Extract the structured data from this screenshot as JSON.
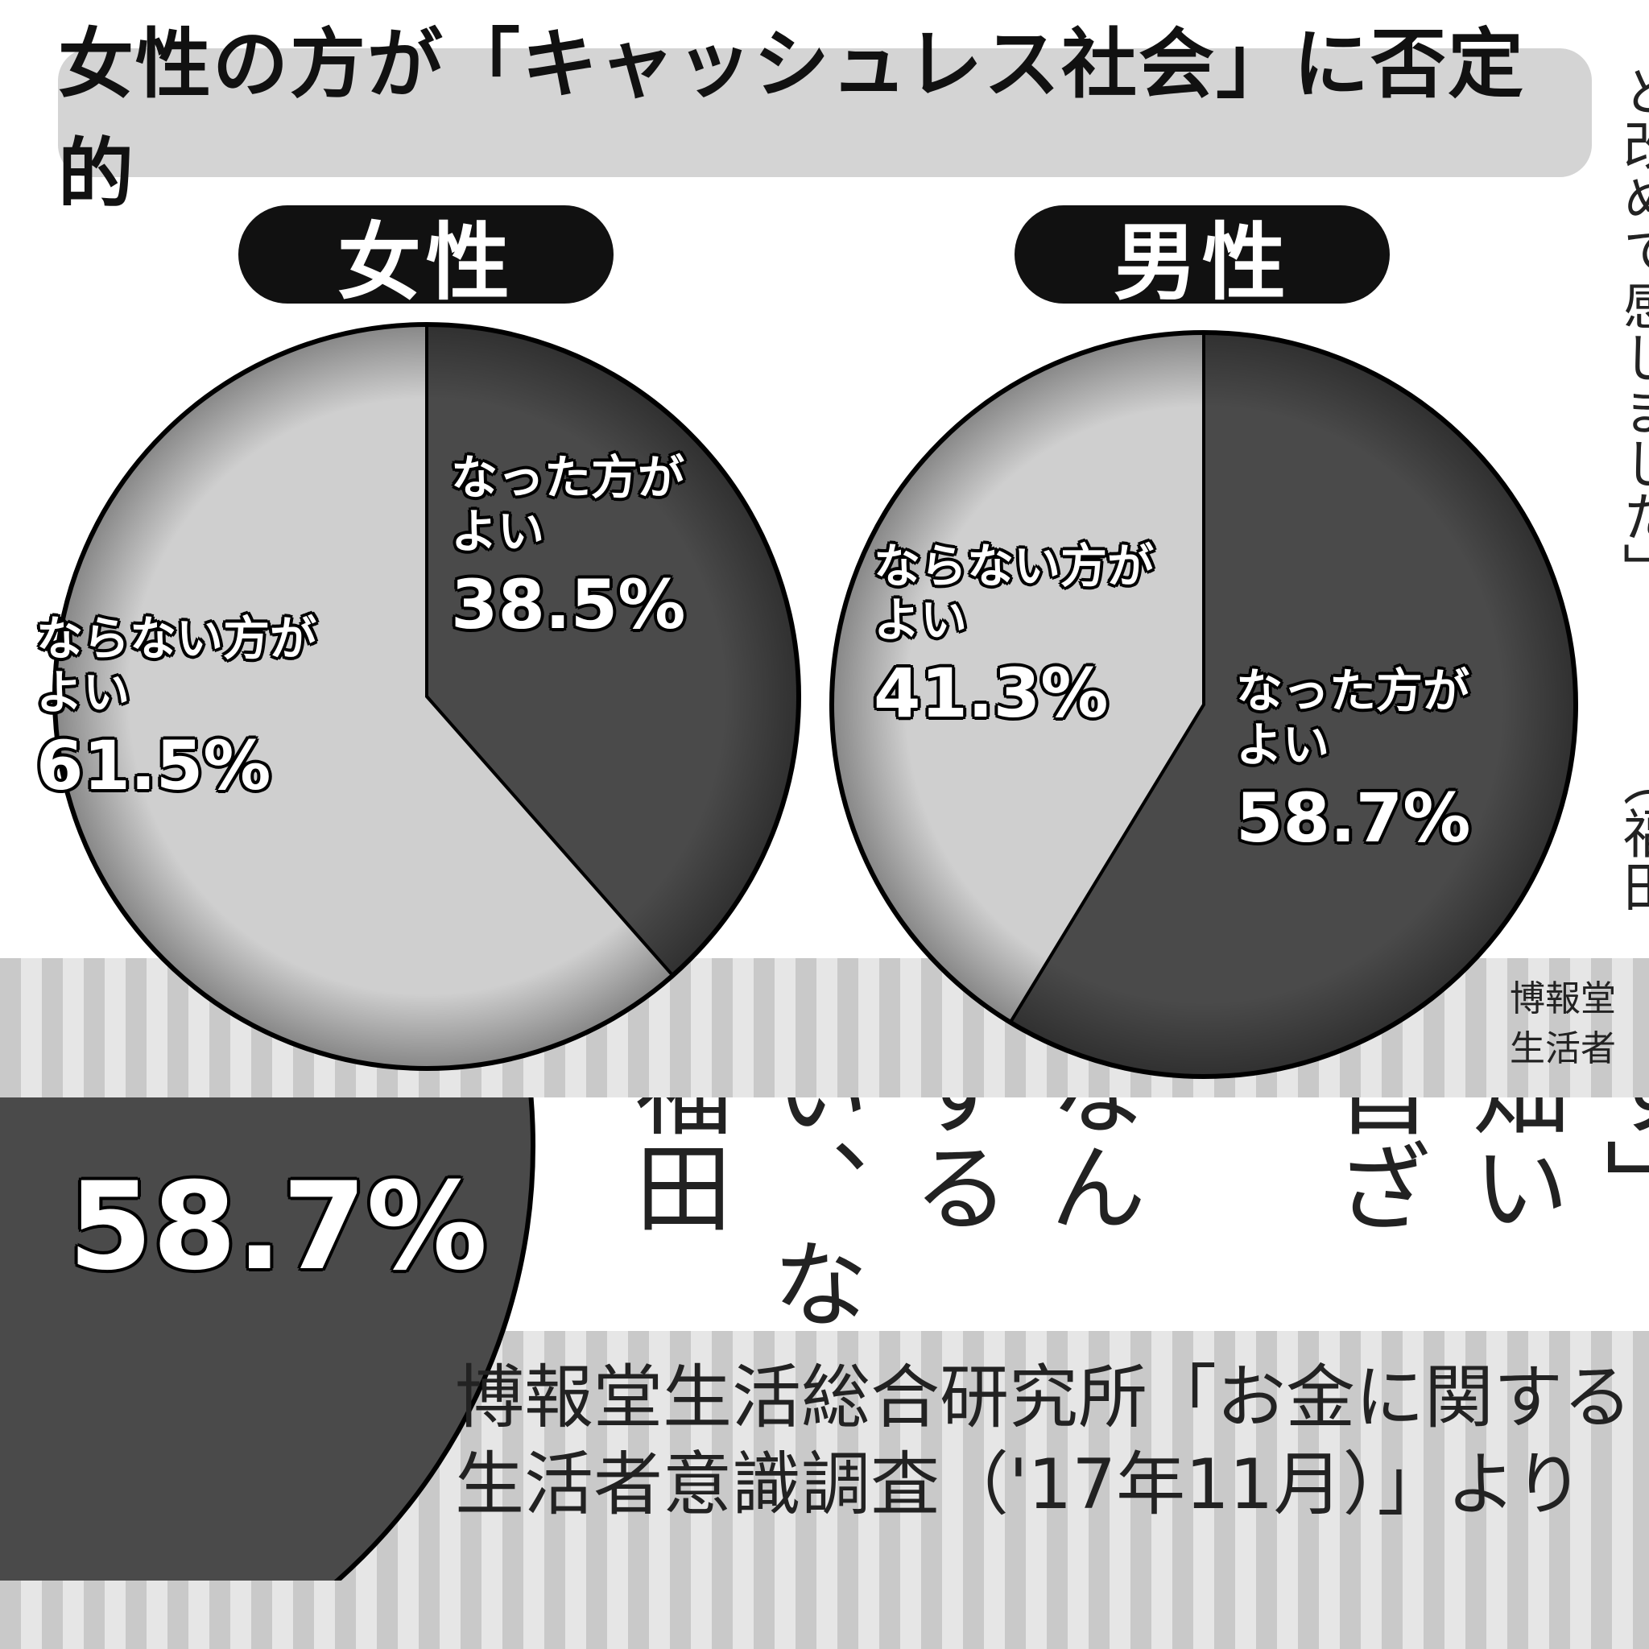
{
  "title": "女性の方が「キャッシュレス社会」に否定的",
  "chart_data": [
    {
      "type": "pie",
      "group": "女性",
      "slices": [
        {
          "label": "なった方がよい",
          "label_lines": [
            "なった方が",
            "よい"
          ],
          "value": 38.5,
          "value_text": "38.5%",
          "color": "#4a4a4a"
        },
        {
          "label": "ならない方がよい",
          "label_lines": [
            "ならない方が",
            "よい"
          ],
          "value": 61.5,
          "value_text": "61.5%",
          "color": "#cfcfcf"
        }
      ]
    },
    {
      "type": "pie",
      "group": "男性",
      "slices": [
        {
          "label": "なった方がよい",
          "label_lines": [
            "なった方が",
            "よい"
          ],
          "value": 58.7,
          "value_text": "58.7%",
          "color": "#4a4a4a"
        },
        {
          "label": "ならない方がよい",
          "label_lines": [
            "ならない方が",
            "よい"
          ],
          "value": 41.3,
          "value_text": "41.3%",
          "color": "#cfcfcf"
        }
      ]
    }
  ],
  "side_text": {
    "right_column": "と改めて感じました」",
    "right_name": "（福田"
  },
  "source": {
    "line1": "博報堂生活総合研究所「お金に関する",
    "line2": "生活者意識調査（'17年11月）」より",
    "crop_line1": "博報堂",
    "crop_line2": "生活者"
  },
  "zoom": {
    "percent": "58.7%",
    "article_columns": [
      "福田",
      "い、な",
      "する",
      "なん",
      "首ざ",
      "畑い",
      "す」"
    ]
  }
}
